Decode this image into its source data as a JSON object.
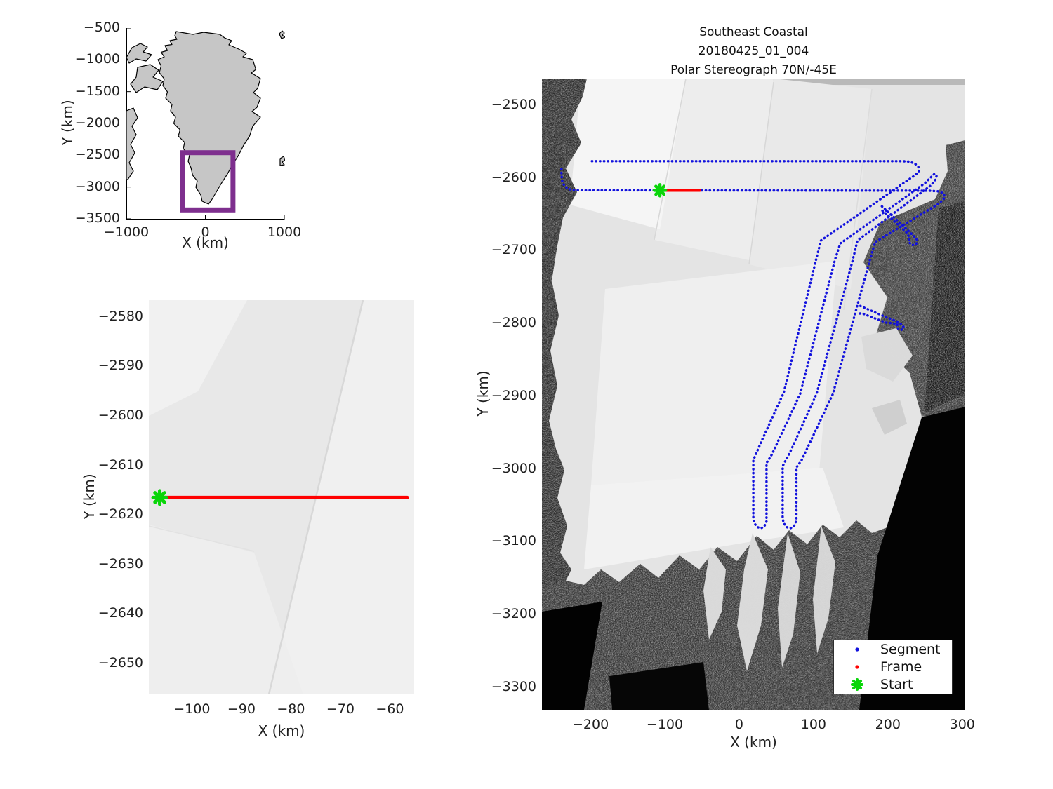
{
  "figure": {
    "background": "#ffffff"
  },
  "colors": {
    "segment_blue": "#1111dd",
    "frame_red": "#ff0000",
    "start_green": "#0ad50a",
    "roi_purple": "#7e2f8e",
    "land_gray": "#c6c6c6",
    "coast_outline": "#000000",
    "text": "#1f1f1f"
  },
  "chart_data": [
    {
      "type": "map-overview",
      "name": "greenland-locator",
      "xlabel": "X (km)",
      "ylabel": "Y (km)",
      "xlim": [
        -1000,
        1000
      ],
      "ylim": [
        -3500,
        -500
      ],
      "xticks": [
        -1000,
        0,
        1000
      ],
      "yticks": [
        -500,
        -1000,
        -1500,
        -2000,
        -2500,
        -3000,
        -3500
      ],
      "roi_km": {
        "x0": -290,
        "x1": 350,
        "y0": -3360,
        "y1": -2460
      }
    },
    {
      "type": "scatter",
      "name": "frame-zoom-map",
      "xlabel": "X (km)",
      "ylabel": "Y (km)",
      "xlim": [
        -108.7,
        -55.1
      ],
      "ylim": [
        -2656.3,
        -2576.6
      ],
      "xticks": [
        -100,
        -90,
        -80,
        -70,
        -60
      ],
      "yticks": [
        -2580,
        -2590,
        -2600,
        -2610,
        -2620,
        -2630,
        -2640,
        -2650
      ],
      "frame_line_km": {
        "x": [
          -106.5,
          -56.5
        ],
        "y": -2616.5
      },
      "start_km": [
        -106.5,
        -2616.5
      ]
    },
    {
      "type": "scatter",
      "name": "segment-map",
      "title_lines": [
        "Southeast Coastal",
        "20180425_01_004",
        "Polar Stereograph 70N/-45E"
      ],
      "xlabel": "X (km)",
      "ylabel": "Y (km)",
      "xlim": [
        -265.2,
        304
      ],
      "ylim": [
        -3331,
        -2463.4
      ],
      "xticks": [
        -200,
        -100,
        0,
        100,
        200,
        300
      ],
      "yticks": [
        -2500,
        -2600,
        -2700,
        -2800,
        -2900,
        -3000,
        -3100,
        -3200,
        -3300
      ],
      "segment_tracks_km": [
        [
          [
            -198,
            -2577
          ],
          [
            219,
            -2577
          ],
          [
            228,
            -2577.5
          ],
          [
            236,
            -2580
          ],
          [
            241,
            -2585
          ],
          [
            241.5,
            -2591
          ],
          [
            237,
            -2596
          ],
          [
            231,
            -2600
          ],
          [
            110,
            -2686
          ],
          [
            104,
            -2710
          ],
          [
            60,
            -2895
          ],
          [
            30,
            -2962
          ],
          [
            19,
            -2988
          ],
          [
            19,
            -3066
          ],
          [
            20,
            -3074
          ],
          [
            24.5,
            -3080
          ],
          [
            29.5,
            -3081.5
          ],
          [
            34,
            -3078.5
          ],
          [
            36.8,
            -3072
          ],
          [
            36.8,
            -2992
          ],
          [
            44,
            -2980
          ],
          [
            82,
            -2897
          ],
          [
            129,
            -2712
          ],
          [
            136,
            -2690
          ],
          [
            250,
            -2607
          ],
          [
            257,
            -2600
          ],
          [
            262.5,
            -2594.5
          ],
          [
            265.5,
            -2597
          ],
          [
            264,
            -2602.5
          ],
          [
            258,
            -2610
          ],
          [
            159,
            -2686
          ],
          [
            153,
            -2712
          ],
          [
            104,
            -2897
          ],
          [
            68,
            -2978
          ],
          [
            58.5,
            -2996
          ],
          [
            58.5,
            -3066
          ],
          [
            59.5,
            -3074
          ],
          [
            64,
            -3080
          ],
          [
            69,
            -3081.5
          ],
          [
            74,
            -3078
          ],
          [
            77,
            -3071
          ],
          [
            77,
            -2998
          ],
          [
            84,
            -2988
          ],
          [
            126,
            -2897
          ],
          [
            176,
            -2712
          ],
          [
            183,
            -2688
          ],
          [
            266,
            -2637
          ],
          [
            272,
            -2632
          ],
          [
            276.5,
            -2627
          ],
          [
            275,
            -2621.5
          ],
          [
            269,
            -2618.5
          ],
          [
            255,
            -2617.5
          ],
          [
            -220,
            -2617
          ],
          [
            -229,
            -2615.5
          ],
          [
            -235,
            -2611
          ],
          [
            -238,
            -2604
          ],
          [
            -239,
            -2595
          ],
          [
            -239,
            -2587
          ]
        ],
        [
          [
            192,
            -2639
          ],
          [
            210,
            -2656
          ],
          [
            227,
            -2672
          ],
          [
            235,
            -2680
          ],
          [
            239,
            -2685
          ],
          [
            238,
            -2691
          ],
          [
            232.5,
            -2692.5
          ],
          [
            228,
            -2688
          ],
          [
            228.5,
            -2681
          ],
          [
            225,
            -2675
          ],
          [
            208,
            -2659
          ],
          [
            196,
            -2648
          ],
          [
            190,
            -2643
          ]
        ],
        [
          [
            163,
            -2776
          ],
          [
            181,
            -2784
          ],
          [
            199,
            -2792
          ],
          [
            212,
            -2797
          ],
          [
            218,
            -2801
          ],
          [
            221.5,
            -2805.5
          ],
          [
            218,
            -2809
          ],
          [
            213,
            -2806.5
          ],
          [
            212.5,
            -2800.5
          ],
          [
            198,
            -2799
          ],
          [
            180,
            -2792
          ],
          [
            165,
            -2786
          ],
          [
            158,
            -2787
          ]
        ]
      ],
      "frame_line_km": {
        "x": [
          -106.6,
          -53
        ],
        "y": -2617
      },
      "start_km": [
        -106.6,
        -2617
      ],
      "legend": {
        "items": [
          {
            "label": "Segment",
            "marker": "dot",
            "color": "#1111dd"
          },
          {
            "label": "Frame",
            "marker": "dot",
            "color": "#ff0000"
          },
          {
            "label": "Start",
            "marker": "asterisk",
            "color": "#0ad50a"
          }
        ]
      }
    }
  ]
}
